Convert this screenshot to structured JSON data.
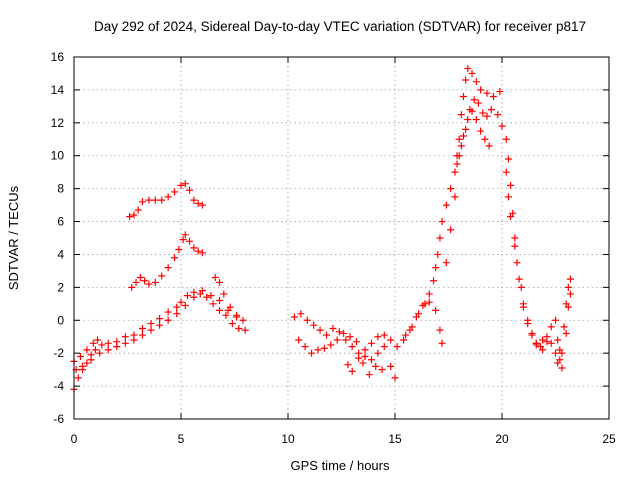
{
  "chart_data": {
    "type": "scatter",
    "title": "Day 292 of 2024, Sidereal Day-to-day VTEC variation (SDTVAR) for receiver p817",
    "xlabel": "GPS time / hours",
    "ylabel": "SDTVAR / TECUs",
    "xlim": [
      0,
      25
    ],
    "ylim": [
      -6,
      16
    ],
    "xticks": [
      0,
      5,
      10,
      15,
      20,
      25
    ],
    "yticks": [
      -6,
      -4,
      -2,
      0,
      2,
      4,
      6,
      8,
      10,
      12,
      14,
      16
    ],
    "grid": true,
    "marker": "+",
    "color": "#ff0000",
    "series": [
      {
        "name": "satellite tracks",
        "points": [
          [
            0.0,
            -4.2
          ],
          [
            0.2,
            -3.5
          ],
          [
            0.4,
            -3.0
          ],
          [
            0.6,
            -2.6
          ],
          [
            0.8,
            -2.1
          ],
          [
            1.0,
            -1.8
          ],
          [
            1.3,
            -1.5
          ],
          [
            1.6,
            -1.4
          ],
          [
            2.0,
            -1.3
          ],
          [
            2.4,
            -1.0
          ],
          [
            2.8,
            -0.9
          ],
          [
            3.2,
            -0.5
          ],
          [
            3.6,
            -0.2
          ],
          [
            4.0,
            0.1
          ],
          [
            4.4,
            0.5
          ],
          [
            4.8,
            0.8
          ],
          [
            5.0,
            1.1
          ],
          [
            5.3,
            1.5
          ],
          [
            5.6,
            1.7
          ],
          [
            5.9,
            1.6
          ],
          [
            6.2,
            1.4
          ],
          [
            6.5,
            1.0
          ],
          [
            6.8,
            0.6
          ],
          [
            7.1,
            0.3
          ],
          [
            7.4,
            -0.2
          ],
          [
            7.7,
            -0.5
          ],
          [
            8.0,
            -0.6
          ],
          [
            0.1,
            -3.0
          ],
          [
            0.4,
            -2.8
          ],
          [
            0.8,
            -2.4
          ],
          [
            1.2,
            -2.0
          ],
          [
            1.6,
            -1.8
          ],
          [
            2.0,
            -1.6
          ],
          [
            2.4,
            -1.4
          ],
          [
            2.8,
            -1.2
          ],
          [
            3.2,
            -0.9
          ],
          [
            3.6,
            -0.6
          ],
          [
            4.0,
            -0.3
          ],
          [
            4.4,
            0.0
          ],
          [
            4.8,
            0.4
          ],
          [
            5.2,
            0.9
          ],
          [
            5.6,
            1.4
          ],
          [
            6.0,
            1.8
          ],
          [
            6.4,
            1.5
          ],
          [
            6.8,
            1.2
          ],
          [
            7.2,
            0.6
          ],
          [
            7.6,
            0.2
          ],
          [
            0.0,
            -2.5
          ],
          [
            0.3,
            -2.2
          ],
          [
            0.6,
            -1.8
          ],
          [
            0.9,
            -1.4
          ],
          [
            1.1,
            -1.2
          ],
          [
            2.7,
            2.0
          ],
          [
            2.9,
            2.3
          ],
          [
            3.1,
            2.6
          ],
          [
            3.3,
            2.4
          ],
          [
            3.5,
            2.2
          ],
          [
            3.8,
            2.3
          ],
          [
            4.1,
            2.7
          ],
          [
            4.4,
            3.2
          ],
          [
            4.7,
            3.8
          ],
          [
            4.9,
            4.3
          ],
          [
            5.1,
            4.9
          ],
          [
            5.2,
            5.2
          ],
          [
            5.4,
            4.8
          ],
          [
            5.6,
            4.4
          ],
          [
            5.8,
            4.2
          ],
          [
            6.0,
            4.1
          ],
          [
            2.6,
            6.3
          ],
          [
            2.8,
            6.4
          ],
          [
            3.0,
            6.7
          ],
          [
            3.2,
            7.2
          ],
          [
            3.5,
            7.3
          ],
          [
            3.8,
            7.3
          ],
          [
            4.1,
            7.3
          ],
          [
            4.4,
            7.5
          ],
          [
            4.7,
            7.8
          ],
          [
            5.0,
            8.2
          ],
          [
            5.2,
            8.3
          ],
          [
            5.4,
            7.9
          ],
          [
            5.6,
            7.3
          ],
          [
            5.8,
            7.1
          ],
          [
            6.0,
            7.0
          ],
          [
            6.6,
            2.6
          ],
          [
            6.8,
            2.3
          ],
          [
            7.0,
            1.6
          ],
          [
            7.3,
            0.8
          ],
          [
            7.6,
            0.3
          ],
          [
            7.9,
            0.0
          ],
          [
            10.3,
            0.2
          ],
          [
            10.6,
            0.4
          ],
          [
            10.9,
            0.0
          ],
          [
            11.2,
            -0.3
          ],
          [
            11.5,
            -0.6
          ],
          [
            11.8,
            -0.9
          ],
          [
            12.1,
            -0.5
          ],
          [
            12.4,
            -0.7
          ],
          [
            12.7,
            -1.2
          ],
          [
            13.0,
            -1.6
          ],
          [
            13.3,
            -2.0
          ],
          [
            13.6,
            -2.2
          ],
          [
            13.9,
            -2.4
          ],
          [
            14.2,
            -2.0
          ],
          [
            14.5,
            -1.6
          ],
          [
            14.8,
            -2.8
          ],
          [
            15.0,
            -3.5
          ],
          [
            10.5,
            -1.2
          ],
          [
            10.8,
            -1.6
          ],
          [
            11.1,
            -2.0
          ],
          [
            11.4,
            -1.8
          ],
          [
            11.7,
            -1.7
          ],
          [
            12.0,
            -1.5
          ],
          [
            12.3,
            -1.2
          ],
          [
            12.6,
            -0.8
          ],
          [
            12.9,
            -1.0
          ],
          [
            13.2,
            -1.3
          ],
          [
            13.5,
            -2.6
          ],
          [
            13.8,
            -3.3
          ],
          [
            14.1,
            -2.8
          ],
          [
            14.4,
            -3.0
          ],
          [
            12.8,
            -2.7
          ],
          [
            13.0,
            -3.1
          ],
          [
            13.3,
            -2.3
          ],
          [
            13.6,
            -1.8
          ],
          [
            13.9,
            -1.4
          ],
          [
            14.2,
            -1.0
          ],
          [
            14.5,
            -0.9
          ],
          [
            14.8,
            -1.2
          ],
          [
            15.1,
            -1.6
          ],
          [
            15.4,
            -1.2
          ],
          [
            15.7,
            -0.6
          ],
          [
            16.0,
            0.2
          ],
          [
            16.3,
            0.9
          ],
          [
            16.6,
            1.1
          ],
          [
            16.9,
            0.6
          ],
          [
            17.1,
            -0.6
          ],
          [
            17.2,
            -1.4
          ],
          [
            15.5,
            -0.9
          ],
          [
            15.8,
            -0.4
          ],
          [
            16.1,
            0.4
          ],
          [
            16.4,
            1.0
          ],
          [
            16.6,
            1.6
          ],
          [
            16.8,
            2.4
          ],
          [
            16.9,
            3.2
          ],
          [
            17.0,
            4.0
          ],
          [
            17.1,
            5.0
          ],
          [
            17.2,
            6.0
          ],
          [
            17.4,
            7.0
          ],
          [
            17.6,
            8.0
          ],
          [
            17.8,
            9.0
          ],
          [
            18.0,
            10.0
          ],
          [
            18.2,
            11.2
          ],
          [
            18.4,
            12.2
          ],
          [
            18.6,
            12.7
          ],
          [
            18.8,
            12.2
          ],
          [
            19.0,
            11.5
          ],
          [
            19.2,
            11.0
          ],
          [
            19.4,
            10.6
          ],
          [
            17.4,
            3.5
          ],
          [
            17.6,
            5.5
          ],
          [
            17.8,
            7.5
          ],
          [
            17.9,
            9.5
          ],
          [
            18.0,
            11.0
          ],
          [
            18.1,
            12.5
          ],
          [
            18.2,
            13.6
          ],
          [
            18.3,
            14.6
          ],
          [
            18.4,
            15.3
          ],
          [
            18.6,
            15.0
          ],
          [
            18.8,
            14.5
          ],
          [
            19.0,
            14.0
          ],
          [
            19.3,
            13.8
          ],
          [
            19.6,
            13.6
          ],
          [
            19.9,
            13.9
          ],
          [
            17.9,
            10.0
          ],
          [
            18.1,
            10.6
          ],
          [
            18.3,
            11.6
          ],
          [
            18.5,
            12.8
          ],
          [
            18.7,
            13.4
          ],
          [
            18.9,
            13.2
          ],
          [
            19.1,
            12.6
          ],
          [
            19.3,
            12.4
          ],
          [
            19.5,
            12.8
          ],
          [
            19.8,
            12.5
          ],
          [
            20.0,
            11.8
          ],
          [
            20.2,
            11.0
          ],
          [
            20.3,
            9.8
          ],
          [
            20.4,
            8.2
          ],
          [
            20.5,
            6.5
          ],
          [
            20.6,
            5.0
          ],
          [
            20.7,
            3.5
          ],
          [
            20.9,
            2.0
          ],
          [
            21.0,
            0.8
          ],
          [
            21.2,
            -0.2
          ],
          [
            21.4,
            -0.8
          ],
          [
            21.6,
            -1.4
          ],
          [
            21.8,
            -1.6
          ],
          [
            20.2,
            9.0
          ],
          [
            20.3,
            7.5
          ],
          [
            20.4,
            6.3
          ],
          [
            20.6,
            4.5
          ],
          [
            20.8,
            2.5
          ],
          [
            21.0,
            1.0
          ],
          [
            21.2,
            0.0
          ],
          [
            21.4,
            -0.9
          ],
          [
            21.6,
            -1.5
          ],
          [
            21.9,
            -1.8
          ],
          [
            22.1,
            -1.3
          ],
          [
            22.3,
            -0.4
          ],
          [
            22.5,
            0.0
          ],
          [
            22.6,
            -1.2
          ],
          [
            22.7,
            -2.4
          ],
          [
            22.8,
            -2.9
          ],
          [
            21.6,
            -1.4
          ],
          [
            21.9,
            -1.2
          ],
          [
            22.1,
            -1.0
          ],
          [
            22.3,
            -1.4
          ],
          [
            22.5,
            -2.0
          ],
          [
            22.7,
            -1.8
          ],
          [
            22.9,
            -0.4
          ],
          [
            23.0,
            1.0
          ],
          [
            23.1,
            2.0
          ],
          [
            23.2,
            2.5
          ],
          [
            22.6,
            -2.6
          ],
          [
            22.8,
            -2.0
          ],
          [
            23.0,
            -0.8
          ],
          [
            23.1,
            0.8
          ],
          [
            23.2,
            1.6
          ]
        ]
      }
    ]
  }
}
